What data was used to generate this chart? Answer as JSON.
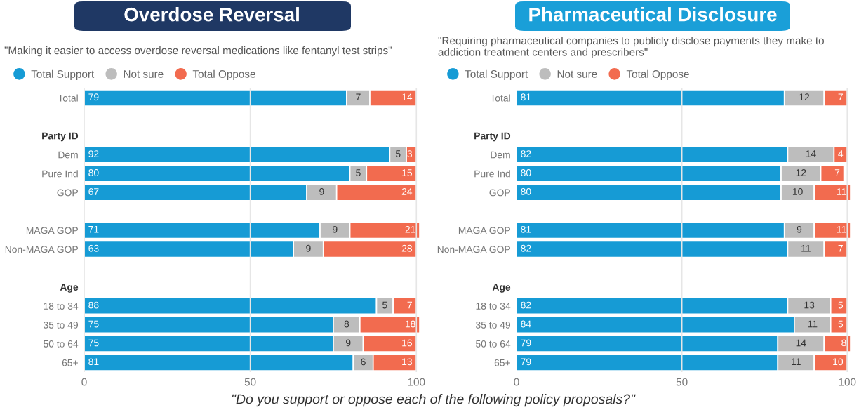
{
  "chart_data": [
    {
      "type": "bar",
      "orientation": "horizontal",
      "stacked": true,
      "title": "Overdose Reversal",
      "subtitle": "\"Making it easier to access overdose reversal medications like fentanyl test strips\"",
      "categories": [
        "Total",
        null,
        "Party ID",
        "Dem",
        "Pure Ind",
        "GOP",
        null,
        "MAGA GOP",
        "Non-MAGA GOP",
        null,
        "Age",
        "18 to 34",
        "35 to 49",
        "50 to 64",
        "65+"
      ],
      "series": [
        {
          "name": "Total Support",
          "color": "#169bd5",
          "values": [
            79,
            null,
            null,
            92,
            80,
            67,
            null,
            71,
            63,
            null,
            null,
            88,
            75,
            75,
            81
          ]
        },
        {
          "name": "Not sure",
          "color": "#bdbdbd",
          "values": [
            7,
            null,
            null,
            5,
            5,
            9,
            null,
            9,
            9,
            null,
            null,
            5,
            8,
            9,
            6
          ]
        },
        {
          "name": "Total Oppose",
          "color": "#f26b4f",
          "values": [
            14,
            null,
            null,
            3,
            15,
            24,
            null,
            21,
            28,
            null,
            null,
            7,
            18,
            16,
            13
          ]
        }
      ],
      "xlim": [
        0,
        101
      ],
      "xticks": [
        0,
        50,
        100
      ],
      "grid": "x",
      "legend": "top left",
      "data_labels": true,
      "annotations": [
        "\"Do you support or oppose each of the following policy proposals?\""
      ]
    },
    {
      "type": "bar",
      "orientation": "horizontal",
      "stacked": true,
      "title": "Pharmaceutical Disclosure",
      "subtitle": "\"Requiring pharmaceutical companies to publicly disclose payments they make to addiction treatment centers and prescribers\"",
      "categories": [
        "Total",
        null,
        "Party ID",
        "Dem",
        "Pure Ind",
        "GOP",
        null,
        "MAGA GOP",
        "Non-MAGA GOP",
        null,
        "Age",
        "18 to 34",
        "35 to 49",
        "50 to 64",
        "65+"
      ],
      "series": [
        {
          "name": "Total Support",
          "color": "#169bd5",
          "values": [
            81,
            null,
            null,
            82,
            80,
            80,
            null,
            81,
            82,
            null,
            null,
            82,
            84,
            79,
            79
          ]
        },
        {
          "name": "Not sure",
          "color": "#bdbdbd",
          "values": [
            12,
            null,
            null,
            14,
            12,
            10,
            null,
            9,
            11,
            null,
            null,
            13,
            11,
            14,
            11
          ]
        },
        {
          "name": "Total Oppose",
          "color": "#f26b4f",
          "values": [
            7,
            null,
            null,
            4,
            7,
            11,
            null,
            11,
            7,
            null,
            null,
            5,
            5,
            8,
            10
          ]
        }
      ],
      "xlim": [
        0,
        101
      ],
      "xticks": [
        0,
        50,
        100
      ],
      "grid": "x",
      "legend": "top left",
      "data_labels": true
    }
  ]
}
